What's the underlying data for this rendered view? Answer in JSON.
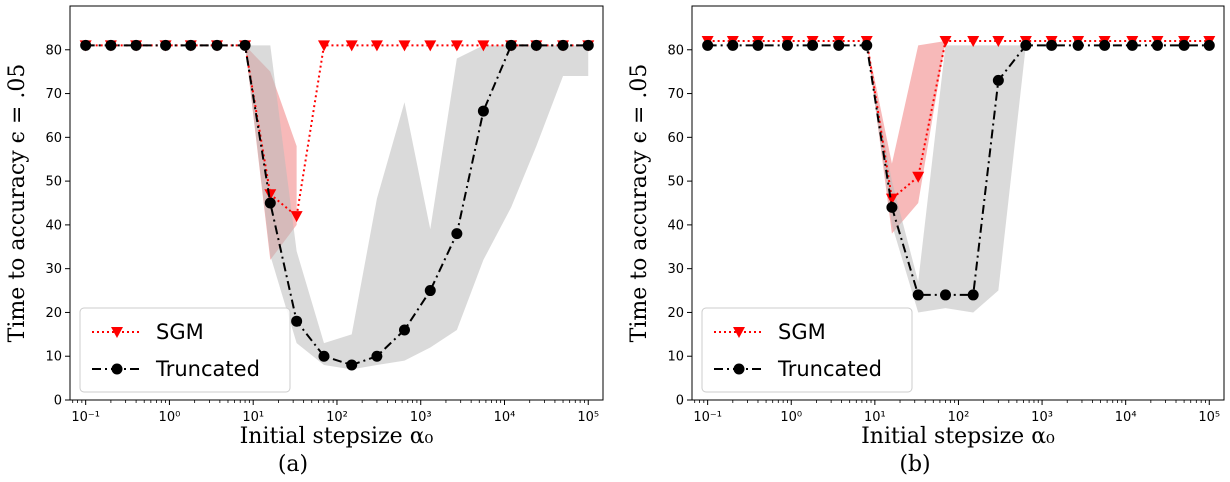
{
  "chart_data": [
    {
      "type": "line",
      "panel_label": "(a)",
      "xlabel": "Initial stepsize α₀",
      "ylabel": "Time to accuracy ϵ = .05",
      "x_scale": "log",
      "xlim": [
        0.065,
        150000
      ],
      "ylim": [
        0,
        90
      ],
      "x_ticks": [
        0.1,
        1,
        10,
        100,
        1000,
        10000,
        100000
      ],
      "x_tick_labels": [
        "10⁻¹",
        "10⁰",
        "10¹",
        "10²",
        "10³",
        "10⁴",
        "10⁵"
      ],
      "y_ticks": [
        0,
        10,
        20,
        30,
        40,
        50,
        60,
        70,
        80
      ],
      "y_tick_labels": [
        "0",
        "10",
        "20",
        "30",
        "40",
        "50",
        "60",
        "70",
        "80"
      ],
      "grid": false,
      "legend_position": "lower-left",
      "series": [
        {
          "name": "SGM",
          "color": "#ff0000",
          "marker": "triangle-down",
          "line_style": "dotted",
          "x": [
            0.1,
            0.2,
            0.4,
            0.9,
            1.8,
            3.7,
            8,
            16,
            33,
            70,
            150,
            300,
            640,
            1300,
            2700,
            5600,
            12000,
            24000,
            50000,
            100000
          ],
          "values": [
            81,
            81,
            81,
            81,
            81,
            81,
            81,
            47,
            42,
            81,
            81,
            81,
            81,
            81,
            81,
            81,
            81,
            81,
            81,
            81
          ],
          "band": {
            "color": "#f08080",
            "x": [
              8,
              16,
              33
            ],
            "lower": [
              81,
              32,
              40
            ],
            "upper": [
              81,
              75,
              58
            ]
          }
        },
        {
          "name": "Truncated",
          "color": "#000000",
          "marker": "circle",
          "line_style": "dashdot",
          "x": [
            0.1,
            0.2,
            0.4,
            0.9,
            1.8,
            3.7,
            8,
            16,
            33,
            70,
            150,
            300,
            640,
            1300,
            2700,
            5600,
            12000,
            24000,
            50000,
            100000
          ],
          "values": [
            81,
            81,
            81,
            81,
            81,
            81,
            81,
            45,
            18,
            10,
            8,
            10,
            16,
            25,
            38,
            66,
            81,
            81,
            81,
            81
          ],
          "band": {
            "color": "#bbbbbb",
            "x": [
              8,
              16,
              33,
              70,
              150,
              300,
              640,
              1300,
              2700,
              5600,
              12000,
              24000,
              50000,
              100000
            ],
            "lower": [
              81,
              33,
              13,
              8,
              7,
              8,
              9,
              12,
              16,
              32,
              44,
              58,
              74,
              74
            ],
            "upper": [
              81,
              81,
              34,
              13,
              15,
              46,
              68,
              39,
              78,
              81,
              81,
              81,
              81,
              81
            ]
          }
        }
      ]
    },
    {
      "type": "line",
      "panel_label": "(b)",
      "xlabel": "Initial stepsize α₀",
      "ylabel": "Time to accuracy ϵ = .05",
      "x_scale": "log",
      "xlim": [
        0.065,
        150000
      ],
      "ylim": [
        0,
        90
      ],
      "x_ticks": [
        0.1,
        1,
        10,
        100,
        1000,
        10000,
        100000
      ],
      "x_tick_labels": [
        "10⁻¹",
        "10⁰",
        "10¹",
        "10²",
        "10³",
        "10⁴",
        "10⁵"
      ],
      "y_ticks": [
        0,
        10,
        20,
        30,
        40,
        50,
        60,
        70,
        80
      ],
      "y_tick_labels": [
        "0",
        "10",
        "20",
        "30",
        "40",
        "50",
        "60",
        "70",
        "80"
      ],
      "grid": false,
      "legend_position": "lower-left",
      "series": [
        {
          "name": "SGM",
          "color": "#ff0000",
          "marker": "triangle-down",
          "line_style": "dotted",
          "x": [
            0.1,
            0.2,
            0.4,
            0.9,
            1.8,
            3.7,
            8,
            16,
            33,
            70,
            150,
            300,
            640,
            1300,
            2700,
            5600,
            12000,
            24000,
            50000,
            100000
          ],
          "values": [
            82,
            82,
            82,
            82,
            82,
            82,
            82,
            46,
            51,
            82,
            82,
            82,
            82,
            82,
            82,
            82,
            82,
            82,
            82,
            82
          ],
          "band": {
            "color": "#f08080",
            "x": [
              8,
              16,
              33,
              70
            ],
            "lower": [
              82,
              38,
              45,
              82
            ],
            "upper": [
              82,
              54,
              81,
              82
            ]
          }
        },
        {
          "name": "Truncated",
          "color": "#000000",
          "marker": "circle",
          "line_style": "dashdot",
          "x": [
            0.1,
            0.2,
            0.4,
            0.9,
            1.8,
            3.7,
            8,
            16,
            33,
            70,
            150,
            300,
            640,
            1300,
            2700,
            5600,
            12000,
            24000,
            50000,
            100000
          ],
          "values": [
            81,
            81,
            81,
            81,
            81,
            81,
            81,
            44,
            24,
            24,
            24,
            73,
            81,
            81,
            81,
            81,
            81,
            81,
            81,
            81
          ],
          "band": {
            "color": "#bbbbbb",
            "x": [
              8,
              16,
              33,
              70,
              150,
              300,
              640
            ],
            "lower": [
              81,
              40,
              20,
              21,
              20,
              25,
              81
            ],
            "upper": [
              81,
              50,
              27,
              81,
              81,
              81,
              81
            ]
          }
        }
      ]
    }
  ]
}
